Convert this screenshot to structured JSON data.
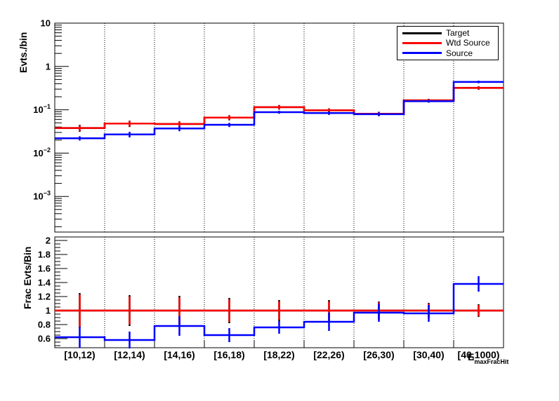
{
  "figure": {
    "background": "#ffffff",
    "legend": {
      "entries": [
        {
          "label": "Target",
          "color": "#000000"
        },
        {
          "label": "Wtd Source",
          "color": "#ff0000"
        },
        {
          "label": "Source",
          "color": "#0000ff"
        }
      ]
    }
  },
  "xaxis": {
    "title_main": "E",
    "title_sub": "maxFracHit"
  },
  "chart_data": [
    {
      "type": "line",
      "panel": "top",
      "style": "step-histogram-with-errors",
      "ylabel": "Evts./bin",
      "yscale": "log",
      "ylim": [
        0.00015,
        10
      ],
      "grid": "vertical-dotted-at-bin-edges",
      "legend_position": "top-right",
      "ytick_values": [
        10,
        1,
        0.1,
        0.01,
        0.001
      ],
      "ytick_labels": [
        "10",
        "1",
        "10^-1",
        "10^-2",
        "10^-3"
      ],
      "categories": [
        "[10,12)",
        "[12,14)",
        "[14,16)",
        "[16,18)",
        "[18,22)",
        "[22,26)",
        "[26,30)",
        "[30,40)",
        "[40,1000)"
      ],
      "series": [
        {
          "name": "Target",
          "color": "#000000",
          "values": [
            0.038,
            0.048,
            0.047,
            0.066,
            0.115,
            0.097,
            0.081,
            0.165,
            0.32
          ],
          "errors": [
            0.007,
            0.008,
            0.007,
            0.009,
            0.014,
            0.011,
            0.009,
            0.014,
            0.03
          ]
        },
        {
          "name": "Wtd Source",
          "color": "#ff0000",
          "values": [
            0.038,
            0.048,
            0.047,
            0.066,
            0.115,
            0.097,
            0.081,
            0.165,
            0.32
          ],
          "errors": [
            0.006,
            0.007,
            0.006,
            0.008,
            0.012,
            0.01,
            0.008,
            0.012,
            0.025
          ]
        },
        {
          "name": "Source",
          "color": "#0000ff",
          "values": [
            0.022,
            0.027,
            0.037,
            0.045,
            0.088,
            0.084,
            0.079,
            0.158,
            0.44
          ],
          "errors": [
            0.0025,
            0.004,
            0.005,
            0.005,
            0.007,
            0.008,
            0.008,
            0.012,
            0.03
          ]
        }
      ]
    },
    {
      "type": "line",
      "panel": "bottom",
      "style": "step-histogram-with-errors",
      "ylabel": "Frac Evts/Bin",
      "yscale": "linear",
      "ylim": [
        0.47,
        2.05
      ],
      "grid": "vertical-dotted-at-bin-edges",
      "ytick_values": [
        0.6,
        0.8,
        1,
        1.2,
        1.4,
        1.6,
        1.8,
        2
      ],
      "ytick_labels": [
        "0.6",
        "0.8",
        "1",
        "1.2",
        "1.4",
        "1.6",
        "1.8",
        "2"
      ],
      "categories": [
        "[10,12)",
        "[12,14)",
        "[14,16)",
        "[16,18)",
        "[18,22)",
        "[22,26)",
        "[26,30)",
        "[30,40)",
        "[40,1000)"
      ],
      "series": [
        {
          "name": "Target",
          "color": "#000000",
          "values": [
            1,
            1,
            1,
            1,
            1,
            1,
            1,
            1,
            1
          ],
          "errors": [
            0.25,
            0.22,
            0.21,
            0.18,
            0.15,
            0.15,
            0.13,
            0.11,
            0.09
          ]
        },
        {
          "name": "Wtd Source",
          "color": "#ff0000",
          "values": [
            1,
            1,
            1,
            1,
            1,
            1,
            1,
            1,
            1
          ],
          "errors": [
            0.23,
            0.2,
            0.19,
            0.16,
            0.13,
            0.13,
            0.12,
            0.1,
            0.08
          ]
        },
        {
          "name": "Source",
          "color": "#0000ff",
          "values": [
            0.62,
            0.58,
            0.78,
            0.65,
            0.76,
            0.84,
            0.97,
            0.96,
            1.38
          ],
          "errors": [
            0.15,
            0.12,
            0.14,
            0.1,
            0.09,
            0.13,
            0.13,
            0.12,
            0.11
          ]
        }
      ]
    }
  ]
}
